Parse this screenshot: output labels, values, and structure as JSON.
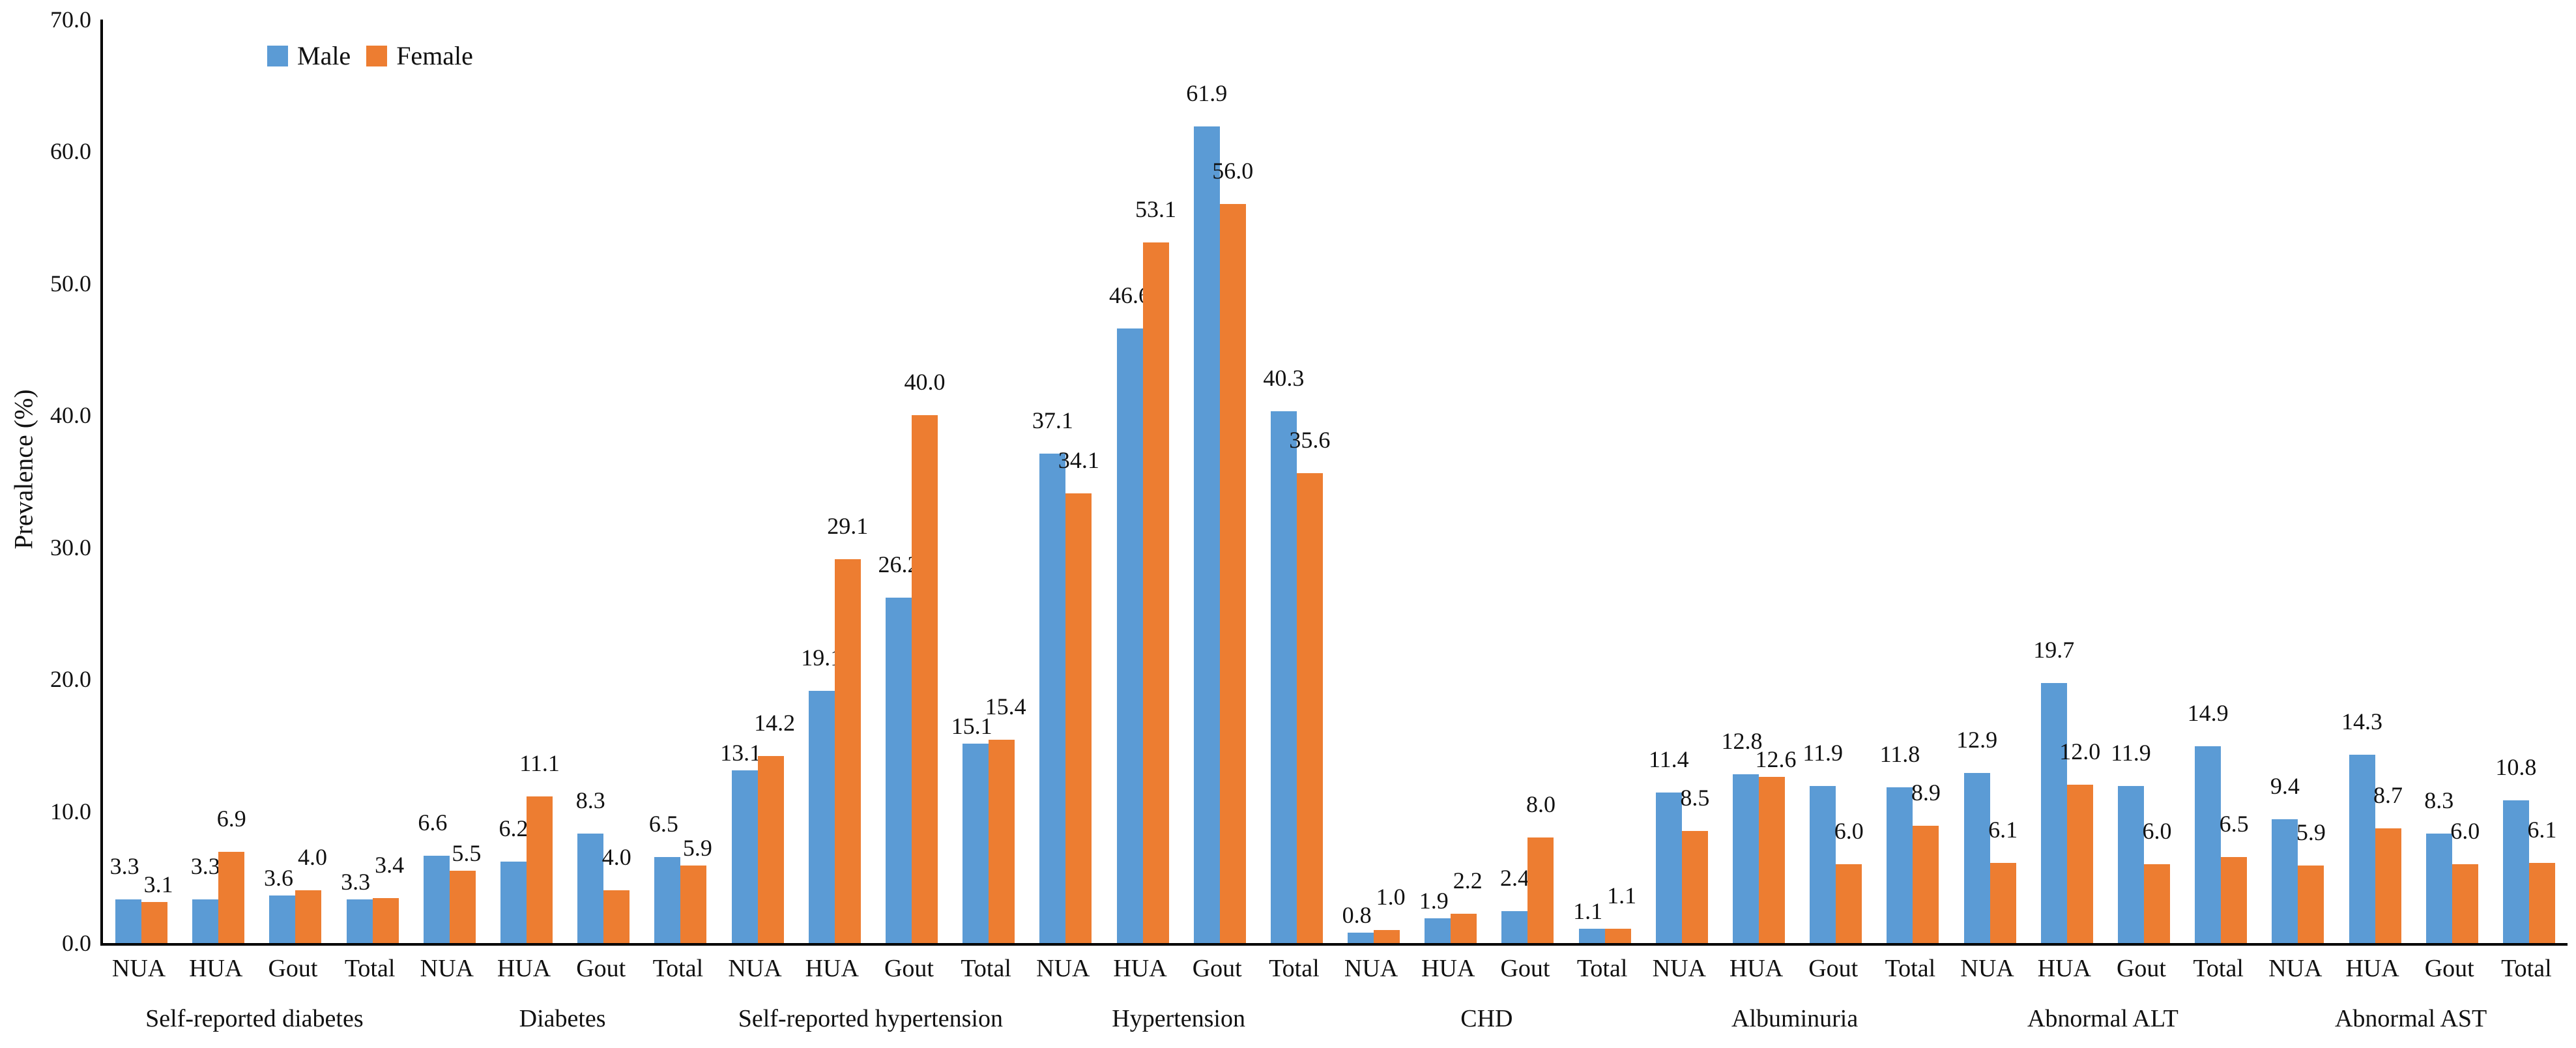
{
  "chart_data": {
    "type": "bar",
    "title": "",
    "xlabel": "",
    "ylabel": "Prevalence (%)",
    "ylim": [
      0,
      70
    ],
    "ytick_labels": [
      "0.0",
      "10.0",
      "20.0",
      "30.0",
      "40.0",
      "50.0",
      "60.0",
      "70.0"
    ],
    "grid": false,
    "legend_position": "inside-top-left",
    "series": [
      {
        "name": "Male",
        "color": "#5B9BD5"
      },
      {
        "name": "Female",
        "color": "#ED7D31"
      }
    ],
    "categories_per_group": [
      "NUA",
      "HUA",
      "Gout",
      "Total"
    ],
    "groups": [
      {
        "label": "Self-reported diabetes",
        "male": [
          3.3,
          3.3,
          3.6,
          3.3
        ],
        "female": [
          3.1,
          6.9,
          4.0,
          3.4
        ]
      },
      {
        "label": "Diabetes",
        "male": [
          6.6,
          6.2,
          8.3,
          6.5
        ],
        "female": [
          5.5,
          11.1,
          4.0,
          5.9
        ]
      },
      {
        "label": "Self-reported hypertension",
        "male": [
          13.1,
          19.1,
          26.2,
          15.1
        ],
        "female": [
          14.2,
          29.1,
          40.0,
          15.4
        ]
      },
      {
        "label": "Hypertension",
        "male": [
          37.1,
          46.6,
          61.9,
          40.3
        ],
        "female": [
          34.1,
          53.1,
          56.0,
          35.6
        ]
      },
      {
        "label": "CHD",
        "male": [
          0.8,
          1.9,
          2.4,
          1.1
        ],
        "female": [
          1.0,
          2.2,
          8.0,
          1.1
        ]
      },
      {
        "label": "Albuminuria",
        "male": [
          11.4,
          12.8,
          11.9,
          11.8
        ],
        "female": [
          8.5,
          12.6,
          6.0,
          8.9
        ]
      },
      {
        "label": "Abnormal ALT",
        "male": [
          12.9,
          19.7,
          11.9,
          14.9
        ],
        "female": [
          6.1,
          12.0,
          6.0,
          6.5
        ]
      },
      {
        "label": "Abnormal AST",
        "male": [
          9.4,
          14.3,
          8.3,
          10.8
        ],
        "female": [
          5.9,
          8.7,
          6.0,
          6.1
        ]
      }
    ]
  }
}
